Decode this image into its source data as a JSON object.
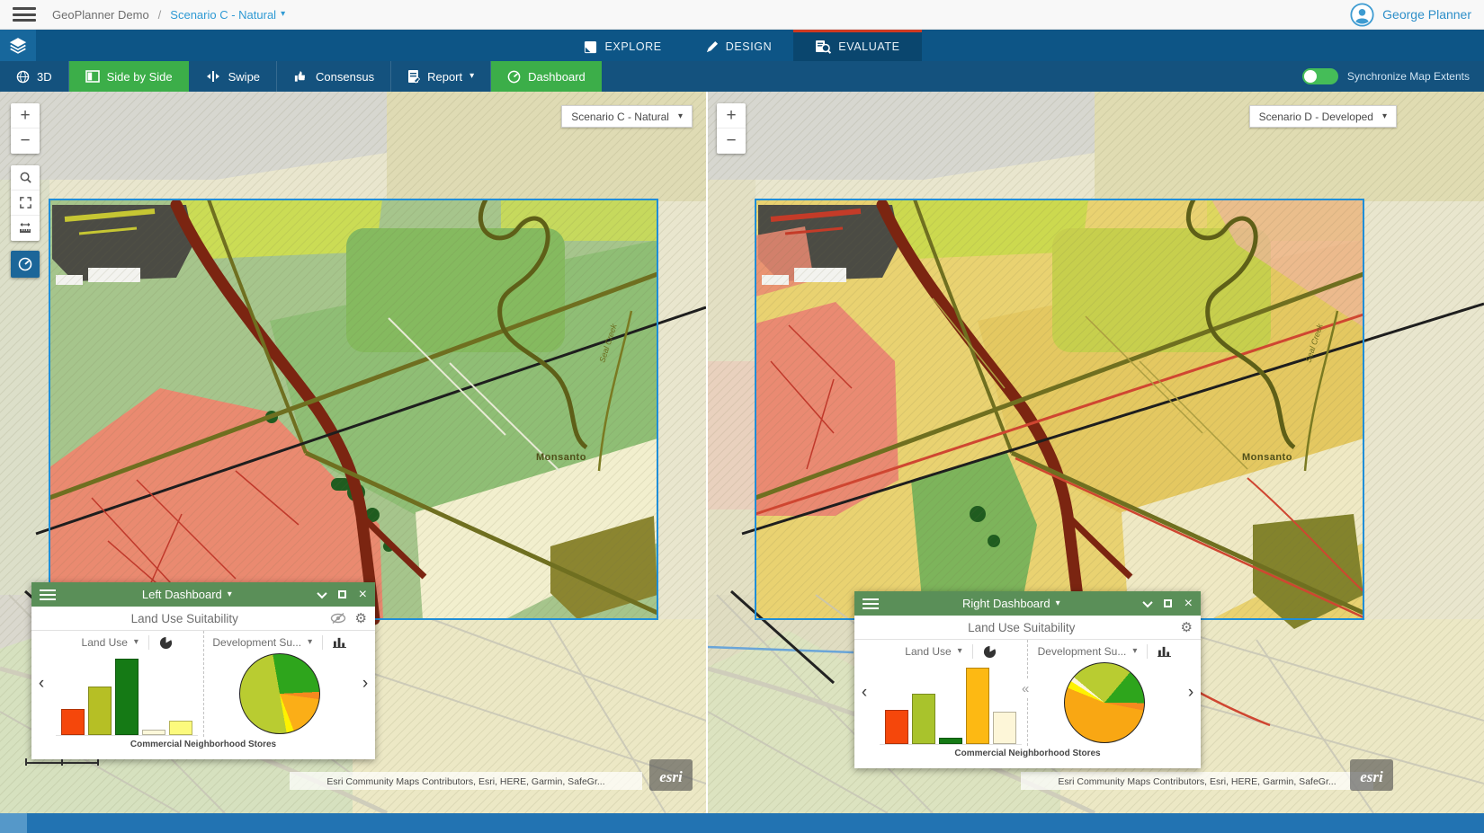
{
  "topbar": {
    "app_title": "GeoPlanner Demo",
    "separator": "/",
    "scenario_link": "Scenario C - Natural",
    "user_name": "George Planner"
  },
  "tabbar": {
    "tabs": [
      {
        "label": "EXPLORE",
        "icon": "map-icon",
        "active": false
      },
      {
        "label": "DESIGN",
        "icon": "pencil-icon",
        "active": false
      },
      {
        "label": "EVALUATE",
        "icon": "evaluate-icon",
        "active": true
      }
    ]
  },
  "toolbar": {
    "buttons": [
      {
        "label": "3D",
        "icon": "globe-icon",
        "active": false
      },
      {
        "label": "Side by Side",
        "icon": "side-by-side-icon",
        "active": true
      },
      {
        "label": "Swipe",
        "icon": "swipe-icon",
        "active": false
      },
      {
        "label": "Consensus",
        "icon": "consensus-icon",
        "active": false
      },
      {
        "label": "Report",
        "icon": "report-icon",
        "has_caret": true,
        "active": false
      },
      {
        "label": "Dashboard",
        "icon": "dashboard-gauge-icon",
        "active": true
      }
    ],
    "sync_label": "Synchronize Map Extents",
    "sync_on": true
  },
  "map_controls": {
    "zoom_in": "+",
    "zoom_out": "−"
  },
  "left_map": {
    "scenario_selector": "Scenario C - Natural",
    "labels": {
      "place": "Monsanto",
      "creek": "Seal Creek"
    },
    "attribution": "Esri Community Maps Contributors, Esri, HERE, Garmin, SafeGr...",
    "logo_text": "esri"
  },
  "right_map": {
    "scenario_selector": "Scenario D - Developed",
    "labels": {
      "place": "Monsanto",
      "creek": "Seal Creek"
    },
    "attribution": "Esri Community Maps Contributors, Esri, HERE, Garmin, SafeGr...",
    "logo_text": "esri"
  },
  "left_dashboard": {
    "title": "Left Dashboard",
    "subtitle": "Land Use Suitability",
    "footer_label": "Commercial Neighborhood Stores",
    "charts": [
      {
        "selector": "Land Use",
        "chart_type": "bar",
        "bars": [
          {
            "color": "#f5470b",
            "value": 0.34
          },
          {
            "color": "#b6bf25",
            "value": 0.63
          },
          {
            "color": "#157a15",
            "value": 1.0
          },
          {
            "color": "#fdf8da",
            "value": 0.07
          },
          {
            "color": "#fcfa7d",
            "value": 0.19
          }
        ]
      },
      {
        "selector": "Development Su...",
        "chart_type": "pie",
        "start_deg": -10,
        "slices": [
          {
            "color": "#2ea51c",
            "pct": 27
          },
          {
            "color": "#f6891f",
            "pct": 3
          },
          {
            "color": "#fbae17",
            "pct": 17
          },
          {
            "color": "#fef200",
            "pct": 3
          },
          {
            "color": "#b9cc31",
            "pct": 50
          }
        ]
      }
    ]
  },
  "right_dashboard": {
    "title": "Right Dashboard",
    "subtitle": "Land Use Suitability",
    "footer_label": "Commercial Neighborhood Stores",
    "charts": [
      {
        "selector": "Land Use",
        "chart_type": "bar",
        "bars": [
          {
            "color": "#f5470b",
            "value": 0.45
          },
          {
            "color": "#a9c32c",
            "value": 0.66
          },
          {
            "color": "#157a15",
            "value": 0.08
          },
          {
            "color": "#fdb913",
            "value": 1.0
          },
          {
            "color": "#fdf6d8",
            "value": 0.42
          }
        ]
      },
      {
        "selector": "Development Su...",
        "chart_type": "pie",
        "start_deg": -50,
        "slices": [
          {
            "color": "#b9cc31",
            "pct": 25
          },
          {
            "color": "#2ea51c",
            "pct": 14
          },
          {
            "color": "#f6891f",
            "pct": 3
          },
          {
            "color": "#f9a713",
            "pct": 53
          },
          {
            "color": "#fef200",
            "pct": 3
          },
          {
            "color": "#fdf6d8",
            "pct": 2
          }
        ]
      }
    ]
  },
  "colors": {
    "tab_bar_blue": "#0d5586",
    "toolbar_blue": "#14527e",
    "active_green": "#3cae49",
    "tab_active_border": "#cf3a21",
    "dashboard_header_green": "#5a8f58",
    "link_blue": "#2f9ad4",
    "extent_outline_blue": "#1f8ed8",
    "bottom_bar_blue": "#2273b2"
  }
}
